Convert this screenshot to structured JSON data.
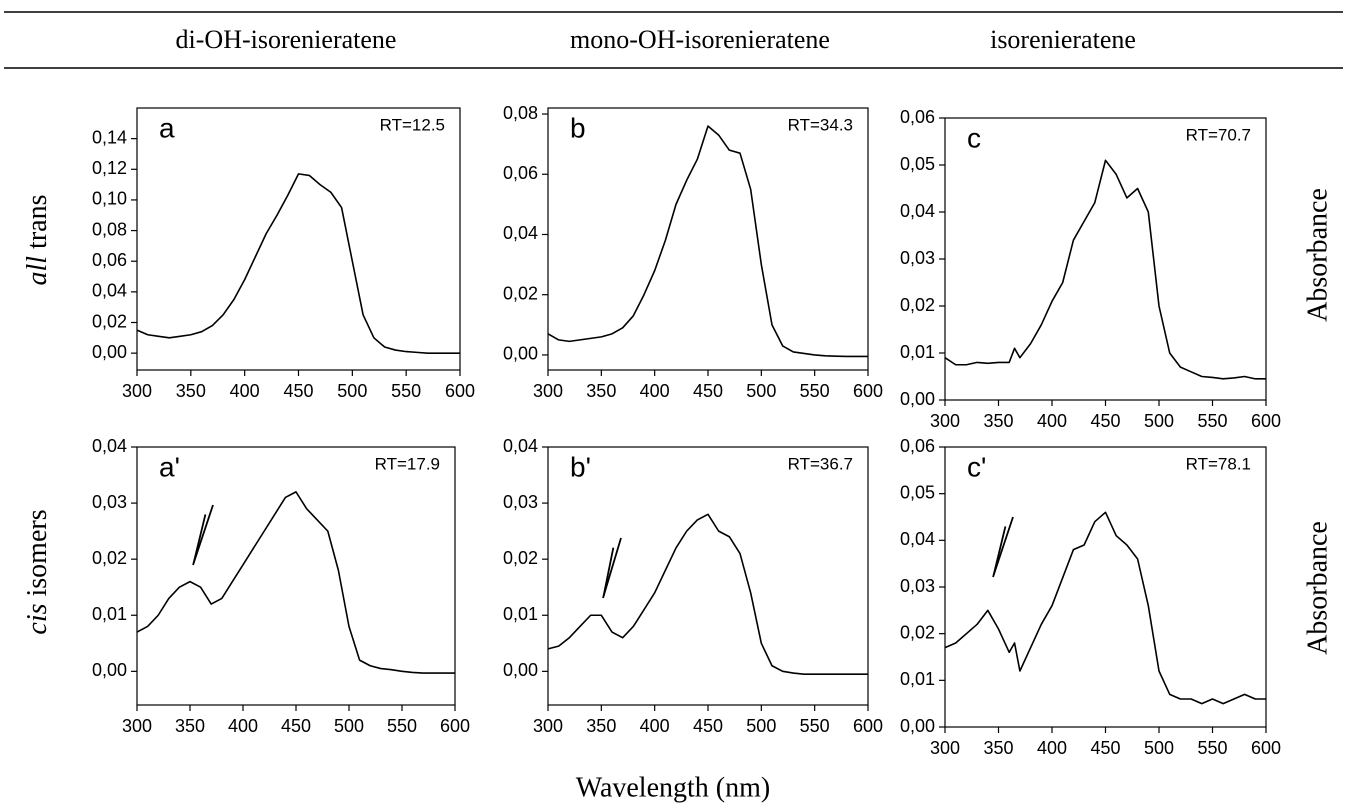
{
  "column_headers": [
    "di-OH-isorenieratene",
    "mono-OH-isorenieratene",
    "isorenieratene"
  ],
  "row_labels": [
    {
      "italic": "all",
      "text": "trans"
    },
    {
      "italic": "cis",
      "text": "isomers"
    }
  ],
  "right_labels": [
    "Absorbance",
    "Absorbance"
  ],
  "x_axis_label": "Wavelength (nm)",
  "chart_data": [
    {
      "type": "line",
      "panel_label": "a",
      "annotation": "RT=12.5",
      "color": "#000000",
      "x": [
        300,
        310,
        320,
        330,
        340,
        350,
        360,
        370,
        380,
        390,
        400,
        410,
        420,
        430,
        440,
        450,
        460,
        470,
        480,
        490,
        500,
        510,
        520,
        530,
        540,
        550,
        560,
        570,
        580,
        590,
        600
      ],
      "values": [
        0.015,
        0.012,
        0.011,
        0.01,
        0.011,
        0.012,
        0.014,
        0.018,
        0.025,
        0.035,
        0.048,
        0.063,
        0.078,
        0.09,
        0.103,
        0.117,
        0.116,
        0.11,
        0.105,
        0.095,
        0.06,
        0.025,
        0.01,
        0.004,
        0.002,
        0.001,
        0.0005,
        0,
        0,
        0,
        0
      ],
      "xlim": [
        300,
        600
      ],
      "xticks": [
        300,
        350,
        400,
        450,
        500,
        550,
        600
      ],
      "ylim": [
        -0.011,
        0.16
      ],
      "yticks": [
        {
          "value": 0,
          "label": "0,00"
        },
        {
          "value": 0.02,
          "label": "0,02"
        },
        {
          "value": 0.04,
          "label": "0,04"
        },
        {
          "value": 0.06,
          "label": "0,06"
        },
        {
          "value": 0.08,
          "label": "0,08"
        },
        {
          "value": 0.1,
          "label": "0,10"
        },
        {
          "value": 0.12,
          "label": "0,12"
        },
        {
          "value": 0.14,
          "label": "0,14"
        }
      ]
    },
    {
      "type": "line",
      "panel_label": "b",
      "annotation": "RT=34.3",
      "color": "#000000",
      "x": [
        300,
        310,
        320,
        330,
        340,
        350,
        360,
        370,
        380,
        390,
        400,
        410,
        420,
        430,
        440,
        450,
        460,
        470,
        480,
        490,
        500,
        510,
        520,
        530,
        540,
        550,
        560,
        570,
        580,
        590,
        600
      ],
      "values": [
        0.007,
        0.005,
        0.0045,
        0.005,
        0.0055,
        0.006,
        0.007,
        0.009,
        0.013,
        0.02,
        0.028,
        0.038,
        0.05,
        0.058,
        0.065,
        0.076,
        0.073,
        0.068,
        0.067,
        0.055,
        0.03,
        0.01,
        0.003,
        0.001,
        0.0005,
        0,
        -0.0003,
        -0.0004,
        -0.0005,
        -0.0005,
        -0.0005
      ],
      "xlim": [
        300,
        600
      ],
      "xticks": [
        300,
        350,
        400,
        450,
        500,
        550,
        600
      ],
      "ylim": [
        -0.005,
        0.082
      ],
      "yticks": [
        {
          "value": 0,
          "label": "0,00"
        },
        {
          "value": 0.02,
          "label": "0,02"
        },
        {
          "value": 0.04,
          "label": "0,04"
        },
        {
          "value": 0.06,
          "label": "0,06"
        },
        {
          "value": 0.08,
          "label": "0,08"
        }
      ]
    },
    {
      "type": "line",
      "panel_label": "c",
      "annotation": "RT=70.7",
      "color": "#000000",
      "x": [
        300,
        310,
        320,
        330,
        340,
        350,
        360,
        365,
        370,
        380,
        390,
        400,
        410,
        420,
        430,
        440,
        450,
        460,
        470,
        480,
        490,
        500,
        510,
        520,
        530,
        540,
        550,
        560,
        570,
        580,
        590,
        600
      ],
      "values": [
        0.009,
        0.0075,
        0.0075,
        0.008,
        0.0078,
        0.008,
        0.008,
        0.011,
        0.009,
        0.012,
        0.016,
        0.021,
        0.025,
        0.034,
        0.038,
        0.042,
        0.051,
        0.048,
        0.043,
        0.045,
        0.04,
        0.02,
        0.01,
        0.007,
        0.006,
        0.005,
        0.0048,
        0.0045,
        0.0047,
        0.005,
        0.0045,
        0.0045
      ],
      "xlim": [
        300,
        600
      ],
      "xticks": [
        300,
        350,
        400,
        450,
        500,
        550,
        600
      ],
      "ylim": [
        0,
        0.06
      ],
      "yticks": [
        {
          "value": 0,
          "label": "0,00"
        },
        {
          "value": 0.01,
          "label": "0,01"
        },
        {
          "value": 0.02,
          "label": "0,02"
        },
        {
          "value": 0.03,
          "label": "0,03"
        },
        {
          "value": 0.04,
          "label": "0,04"
        },
        {
          "value": 0.05,
          "label": "0,05"
        },
        {
          "value": 0.06,
          "label": "0,06"
        }
      ]
    },
    {
      "type": "line",
      "panel_label": "a'",
      "annotation": "RT=17.9",
      "color": "#000000",
      "x": [
        300,
        310,
        320,
        330,
        340,
        350,
        360,
        370,
        380,
        390,
        400,
        410,
        420,
        430,
        440,
        450,
        460,
        470,
        480,
        490,
        500,
        510,
        520,
        530,
        540,
        550,
        560,
        570,
        580,
        590,
        600
      ],
      "values": [
        0.007,
        0.008,
        0.01,
        0.013,
        0.015,
        0.016,
        0.015,
        0.012,
        0.013,
        0.016,
        0.019,
        0.022,
        0.025,
        0.028,
        0.031,
        0.032,
        0.029,
        0.027,
        0.025,
        0.018,
        0.008,
        0.002,
        0.001,
        0.0005,
        0.0003,
        0,
        -0.0002,
        -0.0003,
        -0.0003,
        -0.0003,
        -0.0003
      ],
      "xlim": [
        300,
        600
      ],
      "xticks": [
        300,
        350,
        400,
        450,
        500,
        550,
        600
      ],
      "ylim": [
        -0.006,
        0.04
      ],
      "yticks": [
        {
          "value": 0,
          "label": "0,00"
        },
        {
          "value": 0.01,
          "label": "0,01"
        },
        {
          "value": 0.02,
          "label": "0,02"
        },
        {
          "value": 0.03,
          "label": "0,03"
        },
        {
          "value": 0.04,
          "label": "0,04"
        }
      ]
    },
    {
      "type": "line",
      "panel_label": "b'",
      "annotation": "RT=36.7",
      "color": "#000000",
      "x": [
        300,
        310,
        320,
        330,
        340,
        350,
        360,
        370,
        380,
        390,
        400,
        410,
        420,
        430,
        440,
        450,
        460,
        470,
        480,
        490,
        500,
        510,
        520,
        530,
        540,
        550,
        560,
        570,
        580,
        590,
        600
      ],
      "values": [
        0.004,
        0.0045,
        0.006,
        0.008,
        0.01,
        0.01,
        0.007,
        0.006,
        0.008,
        0.011,
        0.014,
        0.018,
        0.022,
        0.025,
        0.027,
        0.028,
        0.025,
        0.024,
        0.021,
        0.014,
        0.005,
        0.001,
        0,
        -0.0003,
        -0.0005,
        -0.0005,
        -0.0005,
        -0.0005,
        -0.0005,
        -0.0005,
        -0.0005
      ],
      "xlim": [
        300,
        600
      ],
      "xticks": [
        300,
        350,
        400,
        450,
        500,
        550,
        600
      ],
      "ylim": [
        -0.006,
        0.04
      ],
      "yticks": [
        {
          "value": 0,
          "label": "0,00"
        },
        {
          "value": 0.01,
          "label": "0,01"
        },
        {
          "value": 0.02,
          "label": "0,02"
        },
        {
          "value": 0.03,
          "label": "0,03"
        },
        {
          "value": 0.04,
          "label": "0,04"
        }
      ]
    },
    {
      "type": "line",
      "panel_label": "c'",
      "annotation": "RT=78.1",
      "color": "#000000",
      "x": [
        300,
        310,
        320,
        330,
        340,
        350,
        360,
        365,
        370,
        380,
        390,
        400,
        410,
        420,
        430,
        440,
        450,
        460,
        470,
        480,
        490,
        500,
        510,
        520,
        530,
        540,
        550,
        560,
        570,
        580,
        590,
        600
      ],
      "values": [
        0.017,
        0.018,
        0.02,
        0.022,
        0.025,
        0.021,
        0.016,
        0.018,
        0.012,
        0.017,
        0.022,
        0.026,
        0.032,
        0.038,
        0.039,
        0.044,
        0.046,
        0.041,
        0.039,
        0.036,
        0.026,
        0.012,
        0.007,
        0.006,
        0.006,
        0.005,
        0.006,
        0.005,
        0.006,
        0.007,
        0.006,
        0.006
      ],
      "xlim": [
        300,
        600
      ],
      "xticks": [
        300,
        350,
        400,
        450,
        500,
        550,
        600
      ],
      "ylim": [
        0,
        0.06
      ],
      "yticks": [
        {
          "value": 0,
          "label": "0,00"
        },
        {
          "value": 0.01,
          "label": "0,01"
        },
        {
          "value": 0.02,
          "label": "0,02"
        },
        {
          "value": 0.03,
          "label": "0,03"
        },
        {
          "value": 0.04,
          "label": "0,04"
        },
        {
          "value": 0.05,
          "label": "0,05"
        },
        {
          "value": 0.06,
          "label": "0,06"
        }
      ]
    }
  ]
}
